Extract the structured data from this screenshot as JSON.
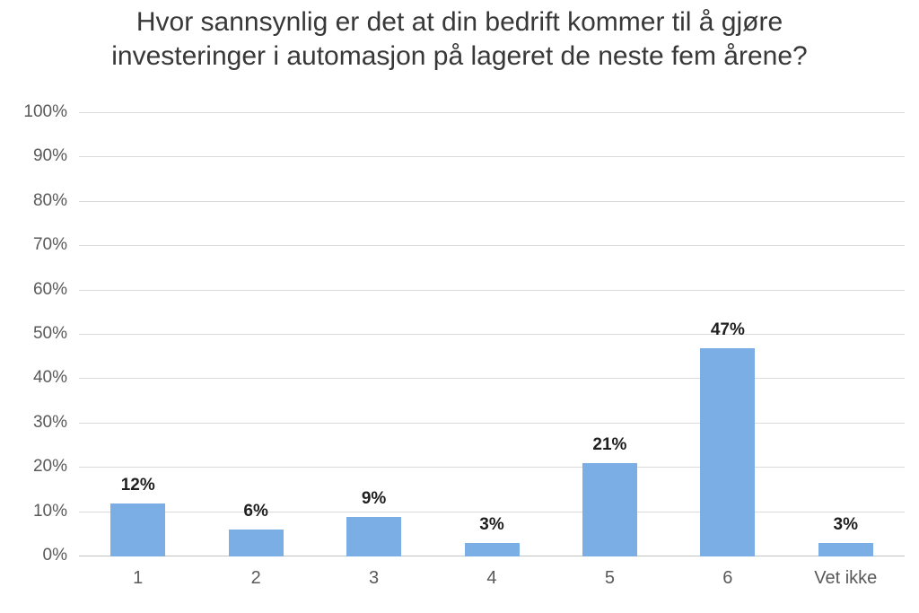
{
  "chart_data": {
    "type": "bar",
    "title": "Hvor sannsynlig er det at din bedrift kommer til å gjøre investeringer i automasjon på lageret de neste fem årene?",
    "title_lines": [
      "Hvor sannsynlig er det at din bedrift kommer til å gjøre",
      "investeringer i automasjon på lageret de neste fem årene?"
    ],
    "categories": [
      "1",
      "2",
      "3",
      "4",
      "5",
      "6",
      "Vet ikke"
    ],
    "values": [
      12,
      6,
      9,
      3,
      21,
      47,
      3
    ],
    "value_labels": [
      "12%",
      "6%",
      "9%",
      "3%",
      "21%",
      "47%",
      "3%"
    ],
    "xlabel": "",
    "ylabel": "",
    "ylim": [
      0,
      100
    ],
    "ytick_step": 10,
    "ytick_suffix": "%",
    "grid": true,
    "legend": false,
    "colors": {
      "bar": "#7AAEE4",
      "gridline": "#DADADA",
      "axis_line": "#C2C2C2",
      "tick_label": "#595959",
      "value_label": "#1F1F1F",
      "title": "#383838",
      "background": "#FFFFFF"
    }
  }
}
